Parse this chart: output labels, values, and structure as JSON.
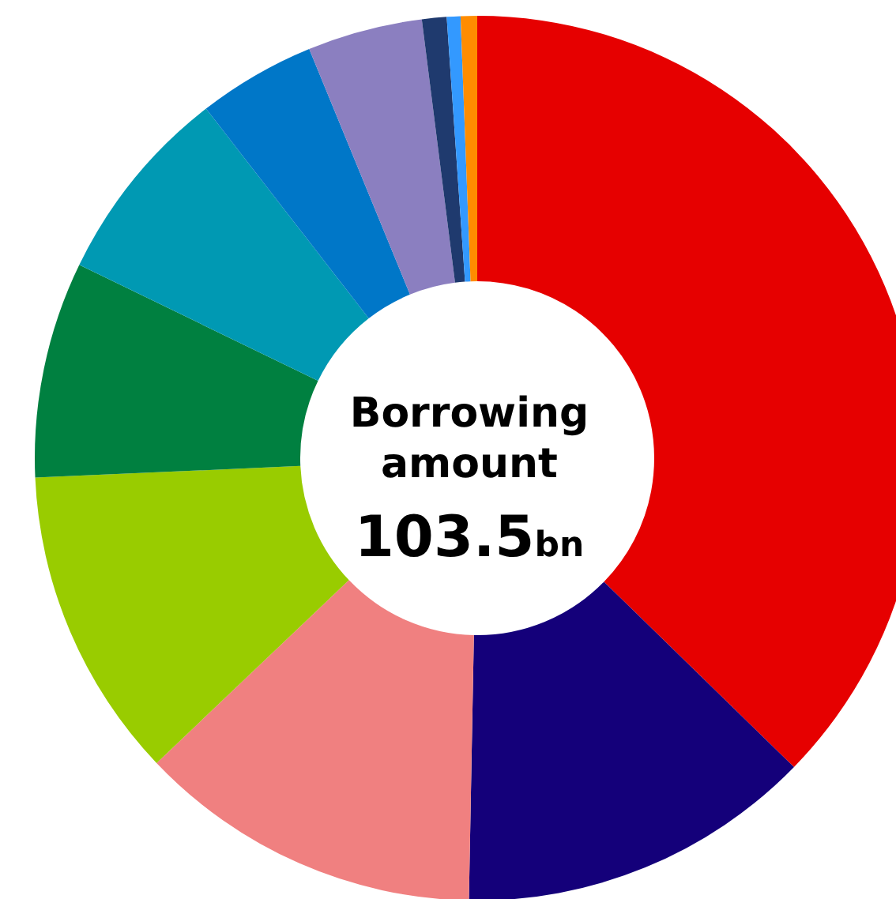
{
  "chart_data": {
    "type": "donut",
    "title": "Borrowing amount",
    "annotations": [
      "103.5bn"
    ],
    "categories": [
      null,
      null,
      null,
      null,
      null,
      null,
      null,
      null,
      null,
      null,
      null
    ],
    "values": [
      37.3,
      13.0,
      12.6,
      11.4,
      7.9,
      7.3,
      4.3,
      4.2,
      0.9,
      0.5,
      0.6
    ],
    "colors": [
      "#e60000",
      "#14007a",
      "#f08080",
      "#99cc00",
      "#008040",
      "#0099b3",
      "#0077c8",
      "#8b7fc0",
      "#1f3a6e",
      "#3399ff",
      "#ff8c00"
    ]
  }
}
